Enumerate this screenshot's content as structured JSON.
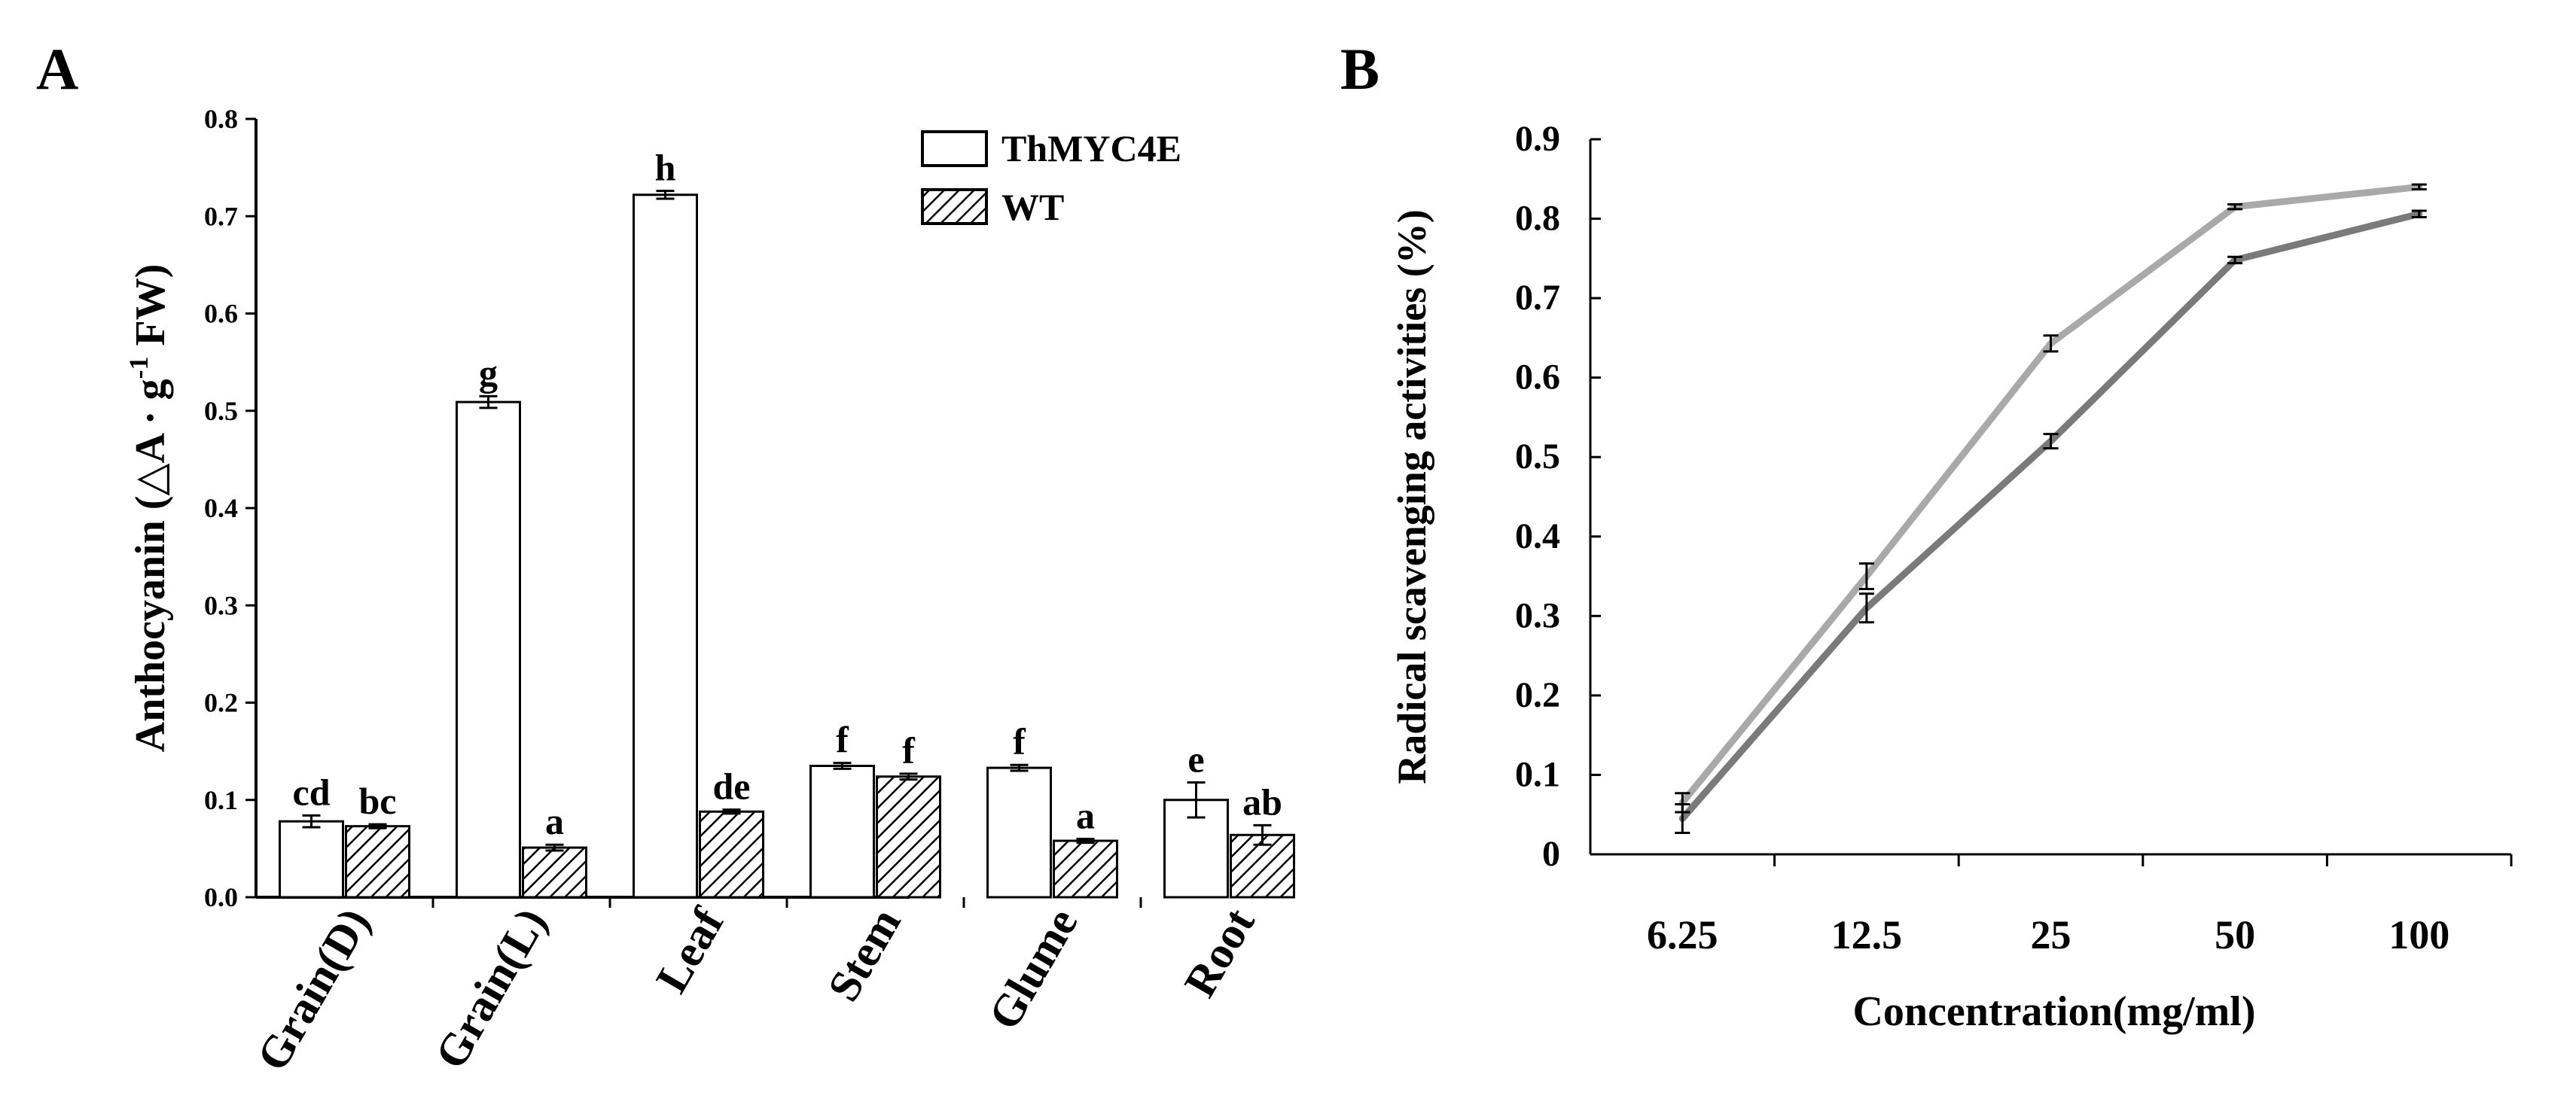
{
  "chart_data": [
    {
      "panel": "A",
      "type": "bar",
      "ylabel_main": "Anthocyanin (△A · g",
      "ylabel_sup": "-1",
      "ylabel_tail": " FW)",
      "xlabel": "",
      "ylim": [
        0,
        0.8
      ],
      "yticks": [
        "0.0",
        "0.1",
        "0.2",
        "0.3",
        "0.4",
        "0.5",
        "0.6",
        "0.7",
        "0.8"
      ],
      "categories": [
        "Grain(D)",
        "Grain(L)",
        "Leaf",
        "Stem",
        "Glume",
        "Root"
      ],
      "series": [
        {
          "name": "ThMYC4E",
          "pattern": "open",
          "values": [
            0.078,
            0.509,
            0.722,
            0.135,
            0.133,
            0.1
          ],
          "errors": [
            0.006,
            0.006,
            0.004,
            0.003,
            0.003,
            0.018
          ],
          "letters": [
            "cd",
            "g",
            "h",
            "f",
            "f",
            "e"
          ]
        },
        {
          "name": "WT",
          "pattern": "hatched",
          "values": [
            0.073,
            0.051,
            0.088,
            0.124,
            0.058,
            0.064
          ],
          "errors": [
            0.002,
            0.003,
            0.002,
            0.003,
            0.002,
            0.01
          ],
          "letters": [
            "bc",
            "a",
            "de",
            "f",
            "a",
            "ab"
          ]
        }
      ],
      "legend_position": "top-right"
    },
    {
      "panel": "B",
      "type": "line",
      "ylabel": "Radical scavenging activities (%)",
      "xlabel": "Concentration(mg/ml)",
      "ylim": [
        0,
        0.9
      ],
      "yticks": [
        "0",
        "0.1",
        "0.2",
        "0.3",
        "0.4",
        "0.5",
        "0.6",
        "0.7",
        "0.8",
        "0.9"
      ],
      "categories": [
        "6.25",
        "12.5",
        "25",
        "50",
        "100"
      ],
      "series": [
        {
          "name": "light",
          "color": "#a9a9a9",
          "values": [
            0.065,
            0.35,
            0.643,
            0.815,
            0.84
          ],
          "errors": [
            0.012,
            0.016,
            0.01,
            0.003,
            0.003
          ]
        },
        {
          "name": "dark",
          "color": "#7a7a7a",
          "values": [
            0.045,
            0.31,
            0.52,
            0.748,
            0.806
          ],
          "errors": [
            0.018,
            0.018,
            0.009,
            0.004,
            0.004
          ]
        }
      ]
    }
  ]
}
